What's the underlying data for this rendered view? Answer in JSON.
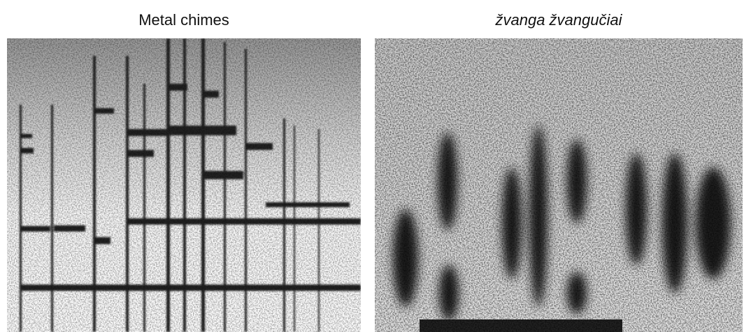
{
  "panels": [
    {
      "title": "Metal chimes"
    },
    {
      "title": "žvanga žvangučiai"
    }
  ]
}
